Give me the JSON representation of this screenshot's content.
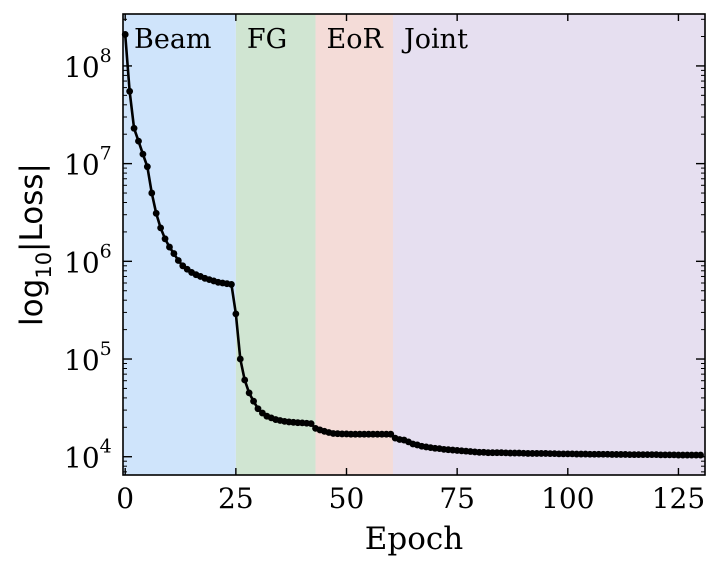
{
  "chart_data": {
    "type": "line",
    "xlabel": "Epoch",
    "ylabel": {
      "pre": "log",
      "sub": "10",
      "post": "|Loss|"
    },
    "yscale": "log",
    "xlim": [
      -0.5,
      131
    ],
    "ylim": [
      6500,
      340000000
    ],
    "xticks": [
      0,
      25,
      50,
      75,
      100,
      125
    ],
    "yticks": [
      {
        "value": 10000,
        "base": "10",
        "exp": "4"
      },
      {
        "value": 100000,
        "base": "10",
        "exp": "5"
      },
      {
        "value": 1000000,
        "base": "10",
        "exp": "6"
      },
      {
        "value": 10000000,
        "base": "10",
        "exp": "7"
      },
      {
        "value": 100000000,
        "base": "10",
        "exp": "8"
      }
    ],
    "grid": false,
    "phases": [
      {
        "label": "Beam",
        "x_start": -0.5,
        "x_end": 25,
        "color": "#cfe4fb"
      },
      {
        "label": "FG",
        "x_start": 25,
        "x_end": 43,
        "color": "#d0e5d2"
      },
      {
        "label": "EoR",
        "x_start": 43,
        "x_end": 60.5,
        "color": "#f4dcd8"
      },
      {
        "label": "Joint",
        "x_start": 60.5,
        "x_end": 131,
        "color": "#e6dff0"
      }
    ],
    "series": [
      {
        "color": "#000000",
        "x": [
          0,
          1,
          2,
          3,
          4,
          5,
          6,
          7,
          8,
          9,
          10,
          11,
          12,
          13,
          14,
          15,
          16,
          17,
          18,
          19,
          20,
          21,
          22,
          23,
          24,
          25,
          26,
          27,
          28,
          29,
          30,
          31,
          32,
          33,
          34,
          35,
          36,
          37,
          38,
          39,
          40,
          41,
          42,
          43,
          44,
          45,
          46,
          47,
          48,
          49,
          50,
          51,
          52,
          53,
          54,
          55,
          56,
          57,
          58,
          59,
          60,
          61,
          62,
          63,
          64,
          65,
          66,
          67,
          68,
          69,
          70,
          71,
          72,
          73,
          74,
          75,
          76,
          77,
          78,
          79,
          80,
          81,
          82,
          83,
          84,
          85,
          86,
          87,
          88,
          89,
          90,
          91,
          92,
          93,
          94,
          95,
          96,
          97,
          98,
          99,
          100,
          101,
          102,
          103,
          104,
          105,
          106,
          107,
          108,
          109,
          110,
          111,
          112,
          113,
          114,
          115,
          116,
          117,
          118,
          119,
          120,
          121,
          122,
          123,
          124,
          125,
          126,
          127,
          128,
          129,
          130
        ],
        "y": [
          210000000,
          55000000,
          23000000,
          17000000,
          12500000,
          9300000,
          5000000,
          3100000,
          2200000,
          1700000,
          1400000,
          1200000,
          1020000,
          900000,
          830000,
          770000,
          730000,
          700000,
          670000,
          650000,
          630000,
          610000,
          600000,
          590000,
          580000,
          290000,
          100000,
          61000,
          45000,
          37000,
          31000,
          28000,
          26000,
          25000,
          24000,
          23500,
          23000,
          22700,
          22500,
          22300,
          22200,
          22000,
          21800,
          19500,
          18800,
          18200,
          17700,
          17300,
          17200,
          17100,
          17100,
          17000,
          17000,
          17000,
          17000,
          17000,
          17000,
          17000,
          17000,
          17000,
          17000,
          15500,
          15000,
          14800,
          14200,
          13500,
          13200,
          12800,
          12600,
          12400,
          12200,
          12100,
          11900,
          11800,
          11700,
          11600,
          11500,
          11400,
          11300,
          11200,
          11100,
          11100,
          11000,
          11000,
          11000,
          11000,
          10950,
          10900,
          10900,
          10900,
          10850,
          10800,
          10800,
          10800,
          10800,
          10800,
          10750,
          10750,
          10700,
          10700,
          10700,
          10700,
          10650,
          10650,
          10650,
          10600,
          10600,
          10600,
          10600,
          10600,
          10550,
          10550,
          10550,
          10550,
          10500,
          10500,
          10500,
          10500,
          10500,
          10500,
          10500,
          10450,
          10450,
          10450,
          10450,
          10400,
          10400,
          10400,
          10400,
          10400,
          10400
        ]
      }
    ]
  }
}
